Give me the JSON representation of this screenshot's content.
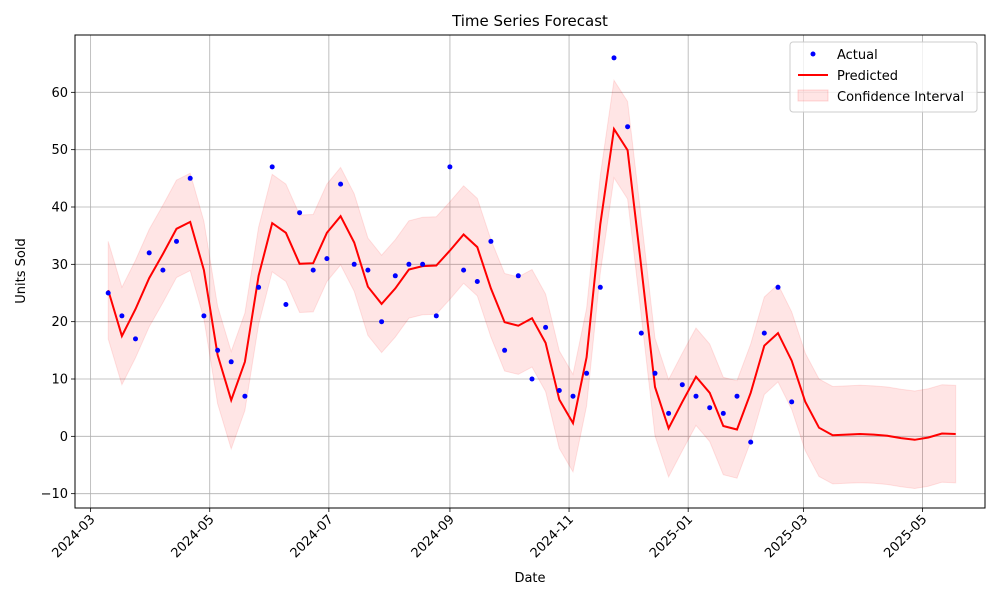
{
  "chart_data": {
    "type": "line",
    "title": "Time Series Forecast",
    "xlabel": "Date",
    "ylabel": "Units Sold",
    "xlim": [
      "2024-02-22",
      "2025-06-02"
    ],
    "ylim": [
      -12.5,
      70
    ],
    "x_ticks": [
      "2024-03",
      "2024-05",
      "2024-07",
      "2024-09",
      "2024-11",
      "2025-01",
      "2025-03",
      "2025-05"
    ],
    "y_ticks": [
      -10,
      0,
      10,
      20,
      30,
      40,
      50,
      60
    ],
    "grid": true,
    "legend_position": "top-right",
    "legend": [
      "Actual",
      "Predicted",
      "Confidence Interval"
    ],
    "colors": {
      "actual": "#0000ff",
      "predicted": "#ff0000",
      "band": "#ff0000"
    },
    "actual": {
      "name": "Actual",
      "x": [
        "2024-03-10",
        "2024-03-17",
        "2024-03-24",
        "2024-03-31",
        "2024-04-07",
        "2024-04-14",
        "2024-04-21",
        "2024-04-28",
        "2024-05-05",
        "2024-05-12",
        "2024-05-19",
        "2024-05-26",
        "2024-06-02",
        "2024-06-09",
        "2024-06-16",
        "2024-06-23",
        "2024-06-30",
        "2024-07-07",
        "2024-07-14",
        "2024-07-21",
        "2024-07-28",
        "2024-08-04",
        "2024-08-11",
        "2024-08-18",
        "2024-08-25",
        "2024-09-01",
        "2024-09-08",
        "2024-09-15",
        "2024-09-22",
        "2024-09-29",
        "2024-10-06",
        "2024-10-13",
        "2024-10-20",
        "2024-10-27",
        "2024-11-03",
        "2024-11-10",
        "2024-11-17",
        "2024-11-24",
        "2024-12-01",
        "2024-12-08",
        "2024-12-15",
        "2024-12-22",
        "2024-12-29",
        "2025-01-05",
        "2025-01-12",
        "2025-01-19",
        "2025-01-26",
        "2025-02-02",
        "2025-02-09",
        "2025-02-16",
        "2025-02-23"
      ],
      "y": [
        25,
        21,
        17,
        32,
        29,
        34,
        45,
        21,
        15,
        13,
        7,
        26,
        47,
        23,
        39,
        29,
        31,
        44,
        30,
        29,
        20,
        28,
        30,
        30,
        21,
        47,
        29,
        27,
        34,
        15,
        28,
        10,
        19,
        8,
        7,
        11,
        26,
        66,
        54,
        18,
        11,
        4,
        9,
        7,
        5,
        4,
        7,
        -1,
        18,
        26,
        6
      ]
    },
    "predicted": {
      "name": "Predicted",
      "x": [
        "2024-03-10",
        "2024-03-17",
        "2024-03-24",
        "2024-03-31",
        "2024-04-07",
        "2024-04-14",
        "2024-04-21",
        "2024-04-28",
        "2024-05-05",
        "2024-05-12",
        "2024-05-19",
        "2024-05-26",
        "2024-06-02",
        "2024-06-09",
        "2024-06-16",
        "2024-06-23",
        "2024-06-30",
        "2024-07-07",
        "2024-07-14",
        "2024-07-21",
        "2024-07-28",
        "2024-08-04",
        "2024-08-11",
        "2024-08-18",
        "2024-08-25",
        "2024-09-01",
        "2024-09-08",
        "2024-09-15",
        "2024-09-22",
        "2024-09-29",
        "2024-10-06",
        "2024-10-13",
        "2024-10-20",
        "2024-10-27",
        "2024-11-03",
        "2024-11-10",
        "2024-11-17",
        "2024-11-24",
        "2024-12-01",
        "2024-12-08",
        "2024-12-15",
        "2024-12-22",
        "2024-12-29",
        "2025-01-05",
        "2025-01-12",
        "2025-01-19",
        "2025-01-26",
        "2025-02-02",
        "2025-02-09",
        "2025-02-16",
        "2025-02-23",
        "2025-03-02",
        "2025-03-09",
        "2025-03-16",
        "2025-03-23",
        "2025-03-30",
        "2025-04-06",
        "2025-04-13",
        "2025-04-20",
        "2025-04-27",
        "2025-05-04",
        "2025-05-11",
        "2025-05-18"
      ],
      "y": [
        25.5,
        17.5,
        22.2,
        27.6,
        31.8,
        36.2,
        37.4,
        29.0,
        14.2,
        6.3,
        13.0,
        28.0,
        37.2,
        35.5,
        30.1,
        30.2,
        35.5,
        38.4,
        33.8,
        26.1,
        23.1,
        25.8,
        29.1,
        29.7,
        29.8,
        32.4,
        35.2,
        33.0,
        25.8,
        19.9,
        19.3,
        20.6,
        16.3,
        6.4,
        2.3,
        13.8,
        37.0,
        53.6,
        49.9,
        29.5,
        8.6,
        1.4,
        6.0,
        10.4,
        7.6,
        1.8,
        1.2,
        7.6,
        15.8,
        18.0,
        13.2,
        6.0,
        1.5,
        0.2,
        0.3,
        0.4,
        0.3,
        0.1,
        -0.3,
        -0.6,
        -0.2,
        0.5,
        0.4
      ]
    },
    "confidence_interval": {
      "name": "Confidence Interval",
      "lower": [
        17.0,
        9.0,
        13.7,
        19.1,
        23.3,
        27.7,
        28.9,
        20.5,
        5.7,
        -2.2,
        4.5,
        19.5,
        28.7,
        27.0,
        21.6,
        21.7,
        27.0,
        29.9,
        25.3,
        17.6,
        14.6,
        17.3,
        20.6,
        21.2,
        21.3,
        23.9,
        26.7,
        24.5,
        17.3,
        11.4,
        10.8,
        12.1,
        7.8,
        -2.1,
        -6.2,
        5.3,
        28.5,
        45.1,
        41.4,
        21.0,
        0.1,
        -7.1,
        -2.5,
        1.9,
        -0.9,
        -6.7,
        -7.3,
        -0.9,
        7.3,
        9.5,
        4.7,
        -2.5,
        -7.0,
        -8.3,
        -8.2,
        -8.1,
        -8.2,
        -8.4,
        -8.8,
        -9.1,
        -8.7,
        -8.0,
        -8.1
      ],
      "upper": [
        34.0,
        26.0,
        30.7,
        36.1,
        40.3,
        44.7,
        45.9,
        37.5,
        22.7,
        14.8,
        21.5,
        36.5,
        45.7,
        44.0,
        38.6,
        38.7,
        44.0,
        46.9,
        42.3,
        34.6,
        31.6,
        34.3,
        37.6,
        38.2,
        38.3,
        40.9,
        43.7,
        41.5,
        34.3,
        28.4,
        27.8,
        29.1,
        24.8,
        14.9,
        10.8,
        22.3,
        45.5,
        62.1,
        58.4,
        38.0,
        17.1,
        9.9,
        14.5,
        18.9,
        16.1,
        10.3,
        9.7,
        16.1,
        24.3,
        26.5,
        21.7,
        14.5,
        10.0,
        8.7,
        8.8,
        8.9,
        8.8,
        8.6,
        8.2,
        7.9,
        8.3,
        9.0,
        8.9
      ]
    }
  }
}
